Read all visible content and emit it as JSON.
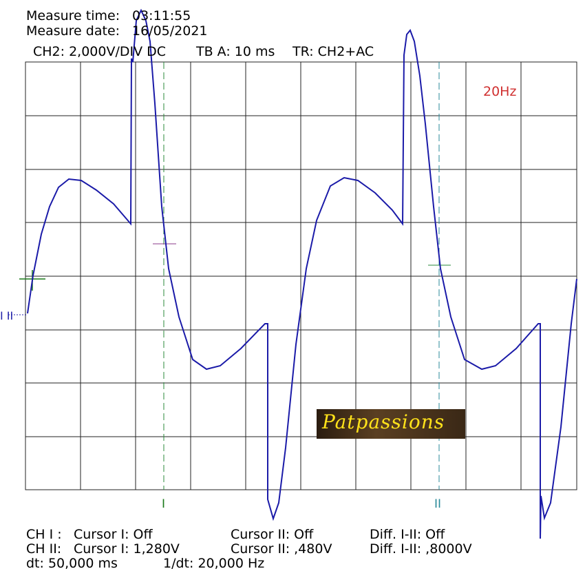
{
  "header": {
    "time_label": "Measure time:",
    "time": "03:11:55",
    "date_label": "Measure date:",
    "date": "16/05/2021",
    "channel": "CH2: 2,000V/DIV DC",
    "timebase": "TB A: 10 ms",
    "trigger": "TR: CH2+AC"
  },
  "annotation": "20Hz",
  "watermark": "Patpassions",
  "cursors": {
    "cursor1": "I",
    "cursor2": "II",
    "level": "I II"
  },
  "readout": {
    "rows": [
      [
        "CH I :",
        "Cursor I: Off",
        "Cursor II: Off",
        "Diff. I-II: Off"
      ],
      [
        "CH II:",
        "Cursor I: 1,280V",
        "Cursor II: ,480V",
        "Diff. I-II: ,8000V"
      ]
    ],
    "dt": "dt: 50,000 ms",
    "inv_dt": "1/dt: 20,000 Hz"
  }
}
